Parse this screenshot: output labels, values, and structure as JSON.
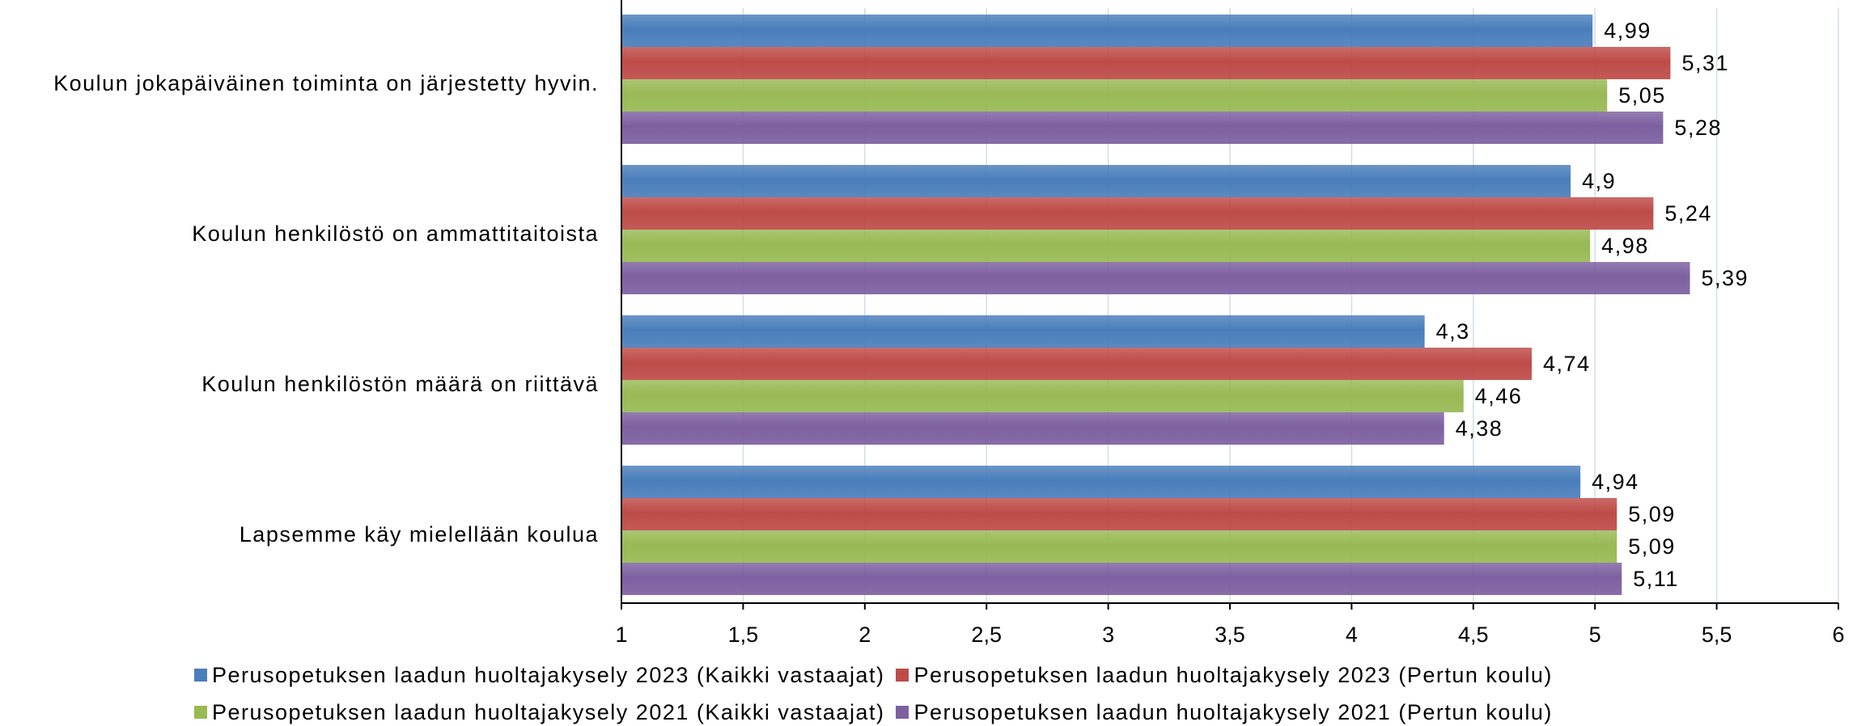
{
  "chart_data": {
    "type": "bar",
    "orientation": "horizontal",
    "categories": [
      "Koulun jokapäiväinen toiminta on järjestetty hyvin.",
      "Koulun henkilöstö on ammattitaitoista",
      "Koulun henkilöstön määrä on riittävä",
      "Lapsemme käy mielellään koulua"
    ],
    "series": [
      {
        "name": "Perusopetuksen laadun huoltajakysely 2023 (Kaikki vastaajat)",
        "color": "#4a7ebb",
        "values": [
          4.99,
          4.9,
          4.3,
          4.94
        ],
        "labels": [
          "4,99",
          "4,9",
          "4,3",
          "4,94"
        ]
      },
      {
        "name": "Perusopetuksen laadun huoltajakysely 2023 (Pertun koulu)",
        "color": "#be4b48",
        "values": [
          5.31,
          5.24,
          4.74,
          5.09
        ],
        "labels": [
          "5,31",
          "5,24",
          "4,74",
          "5,09"
        ]
      },
      {
        "name": "Perusopetuksen laadun huoltajakysely 2021 (Kaikki vastaajat)",
        "color": "#98b954",
        "values": [
          5.05,
          4.98,
          4.46,
          5.09
        ],
        "labels": [
          "5,05",
          "4,98",
          "4,46",
          "5,09"
        ]
      },
      {
        "name": "Perusopetuksen laadun huoltajakysely 2021 (Pertun koulu)",
        "color": "#7d60a0",
        "values": [
          5.28,
          5.39,
          4.38,
          5.11
        ],
        "labels": [
          "5,28",
          "5,39",
          "4,38",
          "5,11"
        ]
      }
    ],
    "xlim": [
      1,
      6
    ],
    "xticks": [
      1,
      1.5,
      2,
      2.5,
      3,
      3.5,
      4,
      4.5,
      5,
      5.5,
      6
    ],
    "xtick_labels": [
      "1",
      "1,5",
      "2",
      "2,5",
      "3",
      "3,5",
      "4",
      "4,5",
      "5",
      "5,5",
      "6"
    ],
    "grid": true,
    "legend_position": "bottom"
  }
}
